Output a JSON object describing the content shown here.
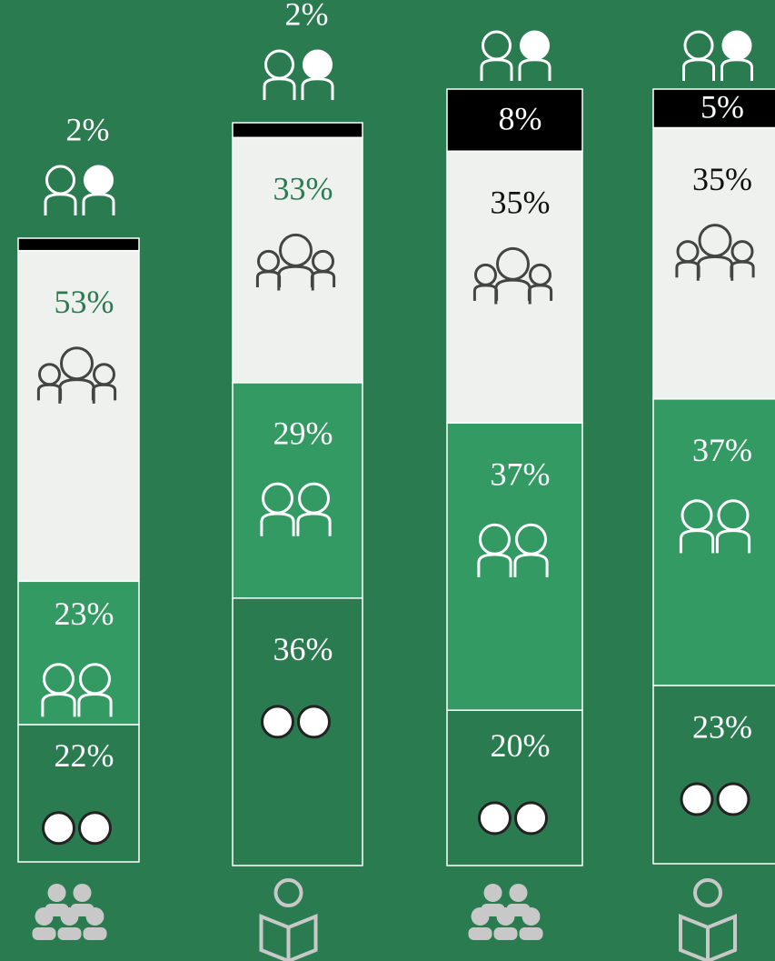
{
  "chart_data": {
    "type": "stacked-bar",
    "series": [
      {
        "color": "#000000",
        "values": [
          2,
          2,
          8,
          5
        ],
        "value_labels": [
          "2%",
          "2%",
          "8%",
          "5%"
        ]
      },
      {
        "color": "#eef1ee",
        "values": [
          53,
          33,
          35,
          35
        ],
        "value_labels": [
          "53%",
          "33%",
          "35%",
          "35%"
        ]
      },
      {
        "color": "#349a64",
        "values": [
          23,
          29,
          37,
          37
        ],
        "value_labels": [
          "23%",
          "29%",
          "37%",
          "37%"
        ]
      },
      {
        "color": "#2b7b50",
        "values": [
          22,
          36,
          20,
          23
        ],
        "value_labels": [
          "22%",
          "36%",
          "20%",
          "23%"
        ]
      }
    ]
  }
}
